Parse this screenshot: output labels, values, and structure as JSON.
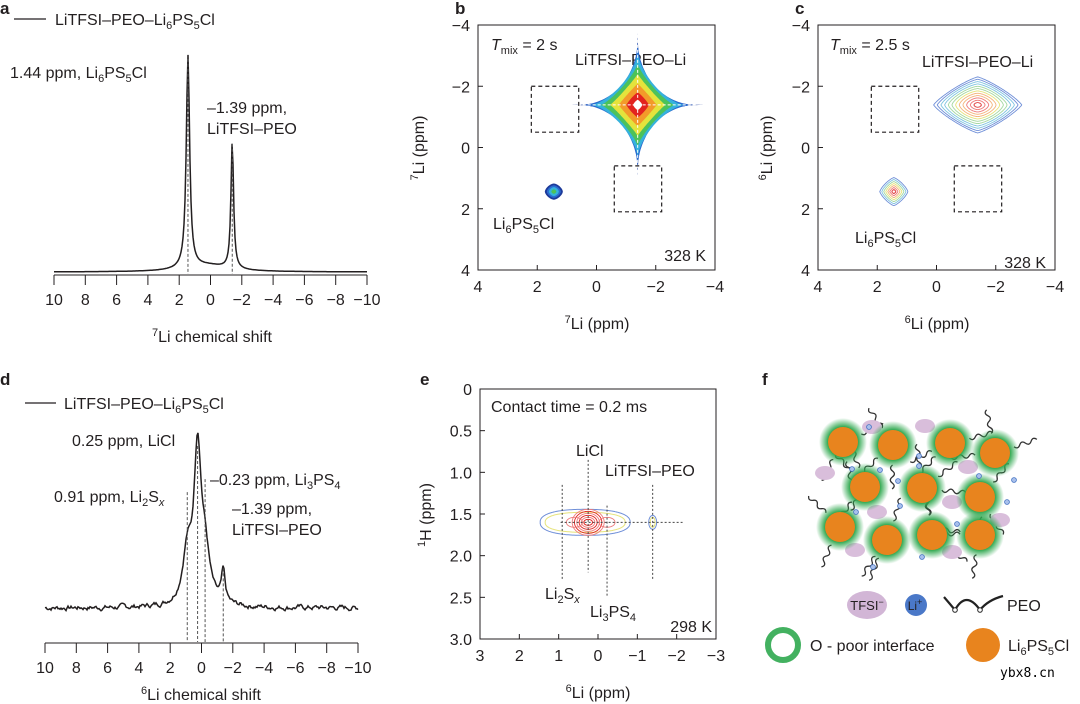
{
  "panel_letters": [
    "a",
    "b",
    "c",
    "d",
    "e",
    "f"
  ],
  "chart_data": [
    {
      "panel": "a",
      "type": "line",
      "legend": "LiTFSI–PEO–Li6PS5Cl",
      "xlabel": {
        "sup": "7",
        "text": "Li chemical shift"
      },
      "xlim": [
        10,
        -10
      ],
      "xticks": [
        10,
        8,
        6,
        4,
        2,
        0,
        -2,
        -4,
        -6,
        -8,
        -10
      ],
      "peaks": [
        {
          "ppm": 1.44,
          "intensity": 1.0,
          "width": 0.13,
          "label": "1.44 ppm, Li6PS5Cl"
        },
        {
          "ppm": -1.39,
          "intensity": 0.6,
          "width": 0.1,
          "label_lines": [
            "–1.39 ppm,",
            "LiTFSI–PEO"
          ]
        }
      ],
      "color": "#231f20"
    },
    {
      "panel": "b",
      "type": "heatmap",
      "annotation": {
        "var": "T",
        "sub": "mix",
        "text": " = 2 s"
      },
      "temperature": "328 K",
      "xlabel": {
        "sup": "7",
        "text": "Li (ppm)"
      },
      "ylabel": {
        "sup": "7",
        "text": "Li (ppm)"
      },
      "xlim": [
        4,
        -4
      ],
      "ylim": [
        -4,
        4
      ],
      "xticks": [
        4,
        2,
        0,
        -2,
        -4
      ],
      "yticks": [
        -4,
        -2,
        0,
        2,
        4
      ],
      "peaks": [
        {
          "x": -1.39,
          "y": -1.39,
          "label": "LiTFSI–PEO–Li"
        },
        {
          "x": 1.44,
          "y": 1.44,
          "label": "Li6PS5Cl"
        }
      ],
      "cross_peak_regions": [
        {
          "x": [
            2.2,
            0.6
          ],
          "y": [
            -2.0,
            -0.5
          ]
        },
        {
          "x": [
            -0.6,
            -2.2
          ],
          "y": [
            0.6,
            2.1
          ]
        }
      ],
      "colormap": [
        "#1d3a9a",
        "#2a6bd0",
        "#35b2dc",
        "#4cc25a",
        "#e4e33c",
        "#f39a2a",
        "#e2231f",
        "#ffffff"
      ]
    },
    {
      "panel": "c",
      "type": "heatmap",
      "annotation": {
        "var": "T",
        "sub": "mix",
        "text": " = 2.5 s"
      },
      "temperature": "328 K",
      "xlabel": {
        "sup": "6",
        "text": "Li (ppm)"
      },
      "ylabel": {
        "sup": "6",
        "text": "Li (ppm)"
      },
      "xlim": [
        4,
        -4
      ],
      "ylim": [
        -4,
        4
      ],
      "xticks": [
        4,
        2,
        0,
        -2,
        -4
      ],
      "yticks": [
        -4,
        -2,
        0,
        2,
        4
      ],
      "peaks": [
        {
          "x": -1.39,
          "y": -1.39,
          "label": "LiTFSI–PEO–Li"
        },
        {
          "x": 1.44,
          "y": 1.44,
          "label": "Li6PS5Cl"
        }
      ],
      "cross_peak_regions": [
        {
          "x": [
            2.2,
            0.6
          ],
          "y": [
            -2.0,
            -0.5
          ]
        },
        {
          "x": [
            -0.6,
            -2.2
          ],
          "y": [
            0.6,
            2.1
          ]
        }
      ],
      "colormap": [
        "#6f8fd8",
        "#7fc4e0",
        "#a4d8a0",
        "#e6e37a",
        "#f4b37a",
        "#ee7b7b",
        "#e24a4a"
      ]
    },
    {
      "panel": "d",
      "type": "line",
      "legend": "LiTFSI–PEO–Li6PS5Cl",
      "xlabel": {
        "sup": "6",
        "text": "Li chemical shift"
      },
      "xlim": [
        10,
        -10
      ],
      "xticks": [
        10,
        8,
        6,
        4,
        2,
        0,
        -2,
        -4,
        -6,
        -8,
        -10
      ],
      "peaks": [
        {
          "ppm": 0.25,
          "intensity": 1.0,
          "width": 0.28,
          "label": "0.25 ppm, LiCl"
        },
        {
          "ppm": 0.91,
          "intensity": 0.32,
          "width": 0.35,
          "label": "0.91 ppm, Li2Sx"
        },
        {
          "ppm": -0.23,
          "intensity": 0.3,
          "width": 0.35,
          "label": "–0.23 ppm, Li3PS4"
        },
        {
          "ppm": -1.39,
          "intensity": 0.2,
          "width": 0.14,
          "label_lines": [
            "–1.39 ppm,",
            "LiTFSI–PEO"
          ]
        }
      ],
      "color": "#231f20"
    },
    {
      "panel": "e",
      "type": "heatmap",
      "annotation": "Contact time = 0.2 ms",
      "temperature": "298 K",
      "xlabel": {
        "sup": "6",
        "text": "Li (ppm)"
      },
      "ylabel": {
        "sup": "1",
        "text": "H (ppm)"
      },
      "xlim": [
        3,
        -3
      ],
      "ylim": [
        0,
        3.0
      ],
      "xticks": [
        "3",
        "2",
        "1",
        "0",
        "−1",
        "−2",
        "−3"
      ],
      "yticks": [
        "0",
        "0.5",
        "1.0",
        "1.5",
        "2.0",
        "2.5",
        "3.0"
      ],
      "h_shift": 1.6,
      "peaks": [
        {
          "x": 0.25,
          "label": "LiCl"
        },
        {
          "x": 0.91,
          "label": "Li2Sx"
        },
        {
          "x": -0.23,
          "label": "Li3PS4"
        },
        {
          "x": -1.39,
          "label": "LiTFSI–PEO"
        }
      ],
      "colormap": [
        "#6f8fd8",
        "#e6e37a",
        "#ee7b7b",
        "#e2231f"
      ]
    }
  ],
  "schematic": {
    "legend": {
      "tfsi": {
        "text": "TFSI",
        "sup": "−"
      },
      "li": {
        "text": "Li",
        "sup": "+"
      },
      "peo": "PEO",
      "interface": "O - poor interface",
      "particle": "Li6PS5Cl"
    },
    "colors": {
      "particle": "#e8841e",
      "interface": "#2fa84f",
      "tfsi": "#d9bedb",
      "li": "#3f6fc0",
      "chain": "#333333"
    }
  },
  "watermark": "ybx8.cn"
}
